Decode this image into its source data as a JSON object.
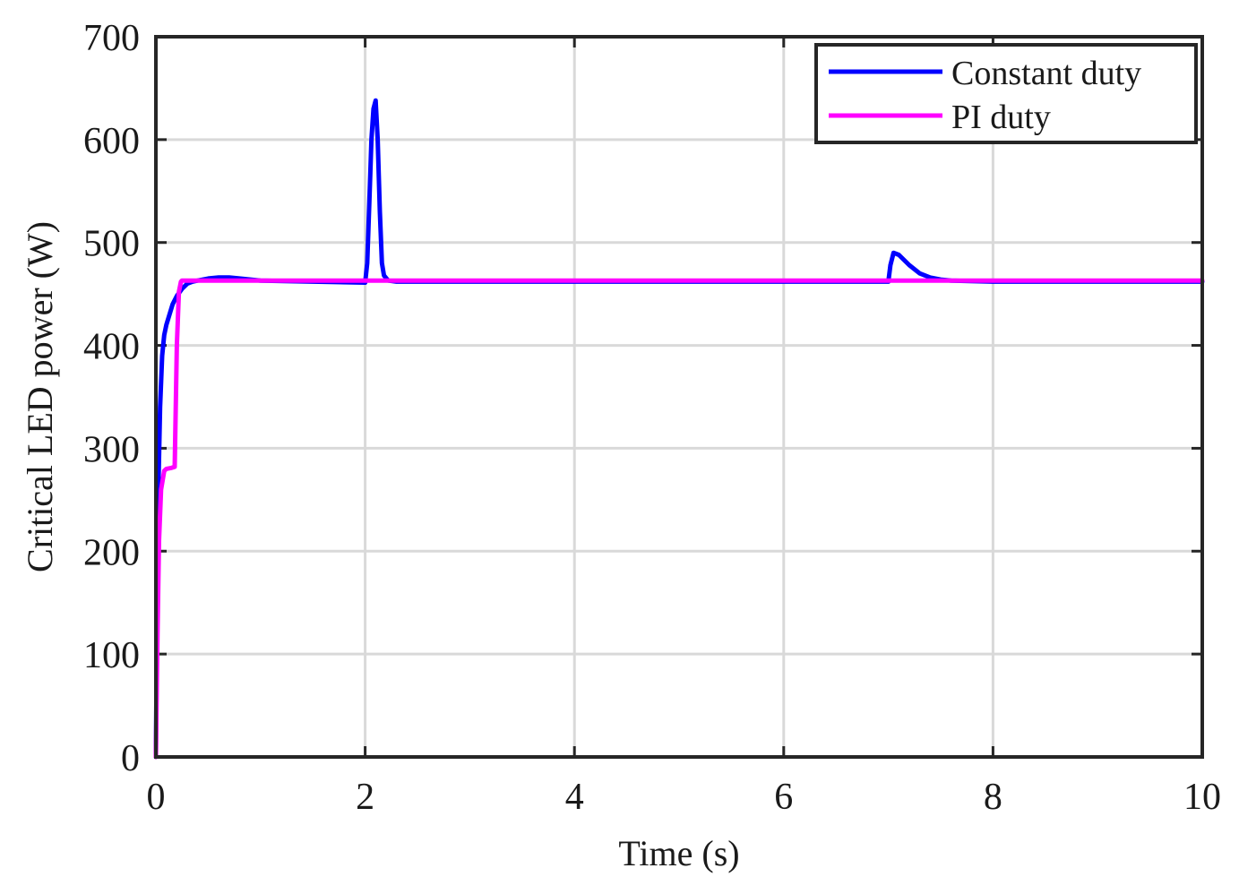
{
  "chart_data": {
    "type": "line",
    "title": "",
    "xlabel": "Time (s)",
    "ylabel": "Critical LED power (W)",
    "xlim": [
      0,
      10
    ],
    "ylim": [
      0,
      700
    ],
    "xticks": [
      0,
      2,
      4,
      6,
      8,
      10
    ],
    "yticks": [
      0,
      100,
      200,
      300,
      400,
      500,
      600,
      700
    ],
    "grid": true,
    "legend_position": "top-right",
    "series": [
      {
        "name": "Constant duty",
        "color": "#0000ff",
        "x": [
          0.0,
          0.02,
          0.04,
          0.06,
          0.08,
          0.1,
          0.13,
          0.16,
          0.2,
          0.25,
          0.3,
          0.35,
          0.4,
          0.5,
          0.6,
          0.7,
          0.8,
          1.0,
          1.5,
          2.0,
          2.02,
          2.04,
          2.06,
          2.08,
          2.1,
          2.12,
          2.14,
          2.16,
          2.18,
          2.22,
          2.3,
          3.0,
          4.0,
          5.0,
          6.0,
          7.0,
          7.02,
          7.05,
          7.1,
          7.2,
          7.3,
          7.4,
          7.5,
          7.6,
          8.0,
          9.0,
          10.0
        ],
        "y": [
          0,
          240,
          340,
          390,
          410,
          420,
          430,
          440,
          448,
          455,
          460,
          462,
          463,
          465,
          466,
          466,
          465,
          463,
          462,
          461,
          480,
          540,
          600,
          630,
          638,
          600,
          530,
          480,
          468,
          463,
          462,
          462,
          462,
          462,
          462,
          462,
          478,
          490,
          488,
          478,
          470,
          466,
          464,
          463,
          462,
          462,
          462
        ]
      },
      {
        "name": "PI duty",
        "color": "#ff00ff",
        "x": [
          0.0,
          0.015,
          0.03,
          0.05,
          0.08,
          0.1,
          0.15,
          0.18,
          0.2,
          0.22,
          0.24,
          0.25,
          0.3,
          0.5,
          1.0,
          2.0,
          3.0,
          4.0,
          5.0,
          6.0,
          7.0,
          8.0,
          9.0,
          10.0
        ],
        "y": [
          0,
          120,
          210,
          260,
          278,
          280,
          281,
          282,
          400,
          452,
          462,
          463,
          463,
          463,
          463,
          463,
          463,
          463,
          463,
          463,
          463,
          463,
          463,
          463
        ]
      }
    ]
  }
}
